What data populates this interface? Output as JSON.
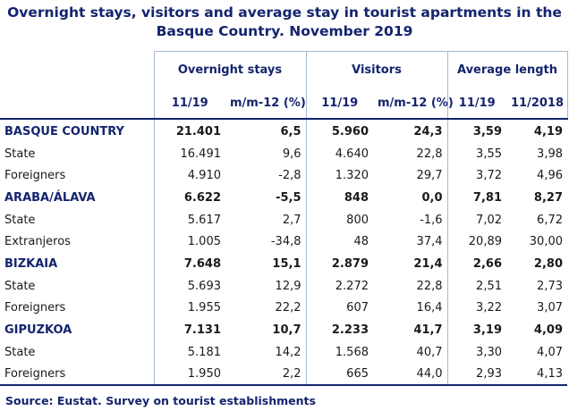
{
  "title": "Overnight stays, visitors and average stay in tourist apartments in the Basque Country. November 2019",
  "groups": {
    "stays": "Overnight stays",
    "visitors": "Visitors",
    "avg": "Average length"
  },
  "subheaders": {
    "stays_cur": "11/19",
    "stays_chg": "m/m-12 (%)",
    "visitors_cur": "11/19",
    "visitors_chg": "m/m-12 (%)",
    "avg_cur": "11/19",
    "avg_prev": "11/2018"
  },
  "rows": [
    {
      "label": "BASQUE COUNTRY",
      "stays": "21.401",
      "stays_chg": "6,5",
      "visitors": "5.960",
      "visitors_chg": "24,3",
      "avg": "3,59",
      "avg_prev": "4,19"
    },
    {
      "label": "State",
      "stays": "16.491",
      "stays_chg": "9,6",
      "visitors": "4.640",
      "visitors_chg": "22,8",
      "avg": "3,55",
      "avg_prev": "3,98"
    },
    {
      "label": "Foreigners",
      "stays": "4.910",
      "stays_chg": "-2,8",
      "visitors": "1.320",
      "visitors_chg": "29,7",
      "avg": "3,72",
      "avg_prev": "4,96"
    },
    {
      "label": "ARABA/ÁLAVA",
      "stays": "6.622",
      "stays_chg": "-5,5",
      "visitors": "848",
      "visitors_chg": "0,0",
      "avg": "7,81",
      "avg_prev": "8,27"
    },
    {
      "label": "State",
      "stays": "5.617",
      "stays_chg": "2,7",
      "visitors": "800",
      "visitors_chg": "-1,6",
      "avg": "7,02",
      "avg_prev": "6,72"
    },
    {
      "label": "Extranjeros",
      "stays": "1.005",
      "stays_chg": "-34,8",
      "visitors": "48",
      "visitors_chg": "37,4",
      "avg": "20,89",
      "avg_prev": "30,00"
    },
    {
      "label": "BIZKAIA",
      "stays": "7.648",
      "stays_chg": "15,1",
      "visitors": "2.879",
      "visitors_chg": "21,4",
      "avg": "2,66",
      "avg_prev": "2,80"
    },
    {
      "label": "State",
      "stays": "5.693",
      "stays_chg": "12,9",
      "visitors": "2.272",
      "visitors_chg": "22,8",
      "avg": "2,51",
      "avg_prev": "2,73"
    },
    {
      "label": "Foreigners",
      "stays": "1.955",
      "stays_chg": "22,2",
      "visitors": "607",
      "visitors_chg": "16,4",
      "avg": "3,22",
      "avg_prev": "3,07"
    },
    {
      "label": "GIPUZKOA",
      "stays": "7.131",
      "stays_chg": "10,7",
      "visitors": "2.233",
      "visitors_chg": "41,7",
      "avg": "3,19",
      "avg_prev": "4,09"
    },
    {
      "label": "State",
      "stays": "5.181",
      "stays_chg": "14,2",
      "visitors": "1.568",
      "visitors_chg": "40,7",
      "avg": "3,30",
      "avg_prev": "4,07"
    },
    {
      "label": "Foreigners",
      "stays": "1.950",
      "stays_chg": "2,2",
      "visitors": "665",
      "visitors_chg": "44,0",
      "avg": "2,93",
      "avg_prev": "4,13"
    }
  ],
  "source": "Source: Eustat. Survey on tourist establishments"
}
